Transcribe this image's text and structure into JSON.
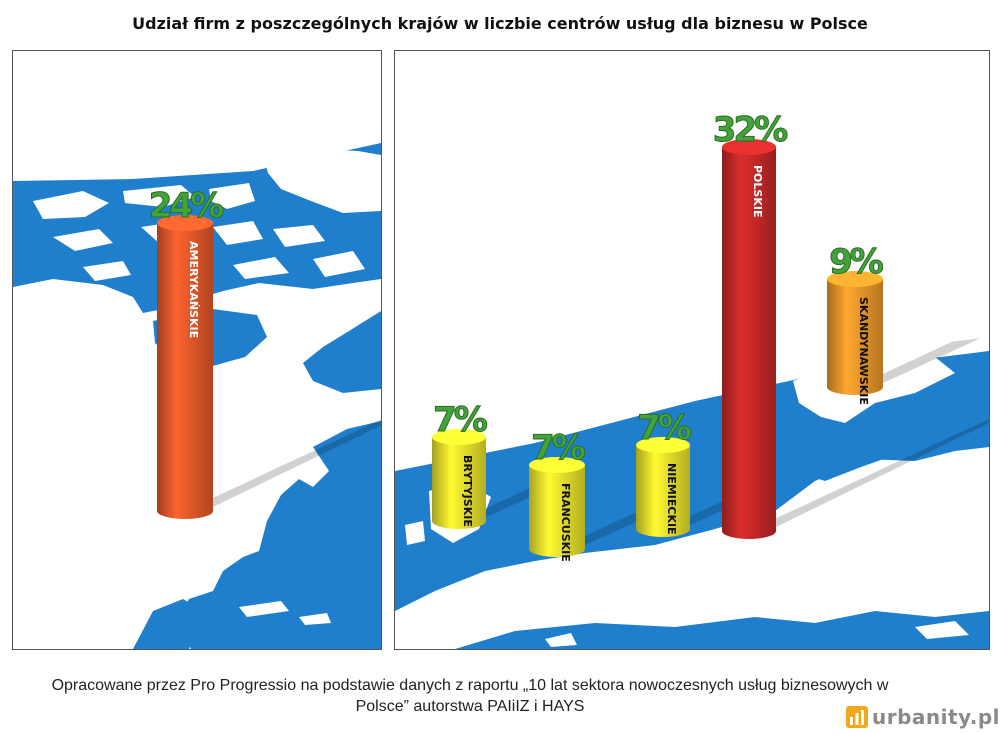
{
  "title": "Udział firm z poszczególnych krajów w liczbie centrów usług dla biznesu w Polsce",
  "source": "Opracowane przez Pro Progressio na podstawie danych z raportu „10 lat sektora nowoczesnych usług biznesowych w Polsce” autorstwa PAIiIZ i HAYS",
  "watermark": "urbanity.pl",
  "colors": {
    "ocean": "#1f7fcc",
    "land": "#ffffff",
    "label_green": "#43a33a",
    "american": "#e2582a",
    "polish": "#c42828",
    "scandinavian": "#e8962a",
    "other": "#e6df2c"
  },
  "chart_data": {
    "type": "bar",
    "title": "Udział firm z poszczególnych krajów w liczbie centrów usług dla biznesu w Polsce",
    "unit": "%",
    "categories": [
      "AMERYKAŃSKIE",
      "BRYTYJSKIE",
      "FRANCUSKIE",
      "NIEMIECKIE",
      "POLSKIE",
      "SKANDYNAWSKIE"
    ],
    "values": [
      24,
      7,
      7,
      7,
      32,
      9
    ],
    "value_labels": [
      "24%",
      "7%",
      "7%",
      "7%",
      "32%",
      "9%"
    ],
    "bar_colors": [
      "#e2582a",
      "#e6df2c",
      "#e6df2c",
      "#e6df2c",
      "#c42828",
      "#e8962a"
    ],
    "panels": [
      "America",
      "Europe"
    ]
  }
}
